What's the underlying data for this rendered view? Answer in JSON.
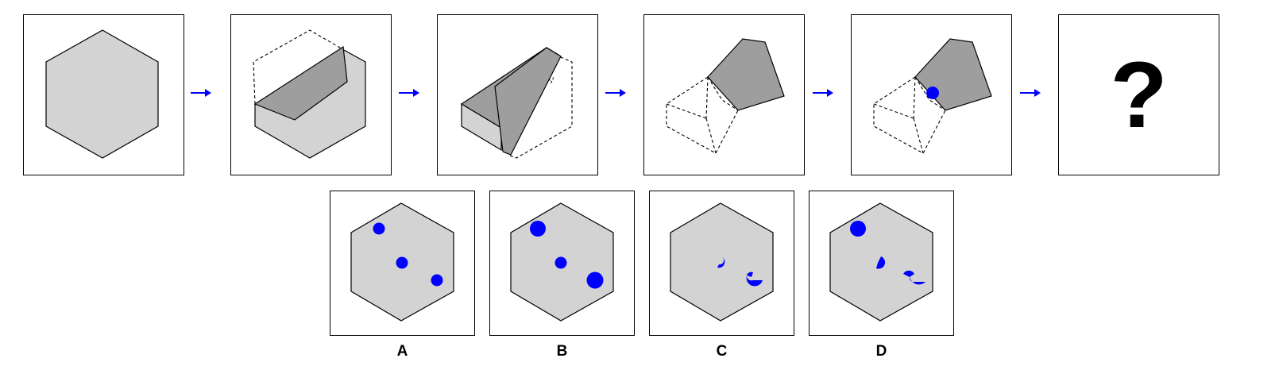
{
  "question_mark": "?",
  "options": [
    {
      "label": "A"
    },
    {
      "label": "B"
    },
    {
      "label": "C"
    },
    {
      "label": "D"
    }
  ],
  "colors": {
    "paper_fill": "#d3d3d3",
    "paper_dark": "#9e9e9e",
    "dot": "#0000ff",
    "arrow": "#0000ff",
    "outline": "#000000"
  },
  "icons": [
    "hexagon-paper",
    "fold",
    "punched-hole",
    "right-arrow-icon"
  ]
}
